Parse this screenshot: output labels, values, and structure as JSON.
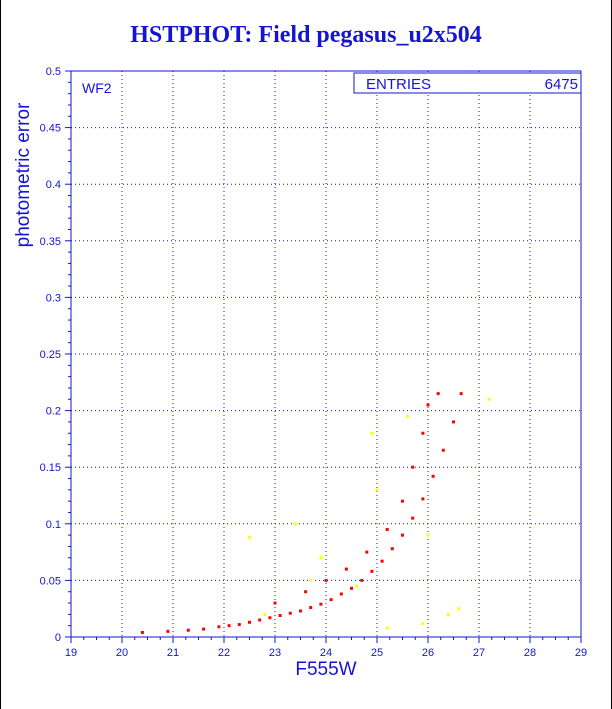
{
  "chart_data": {
    "type": "scatter",
    "title": "HSTPHOT: Field pegasus_u2x504",
    "xlabel": "F555W",
    "ylabel": "photometric error",
    "xlim": [
      19,
      29
    ],
    "ylim": [
      0,
      0.5
    ],
    "x_ticks": [
      "19",
      "20",
      "21",
      "22",
      "23",
      "24",
      "25",
      "26",
      "27",
      "28",
      "29"
    ],
    "y_ticks": [
      "0",
      "0.05",
      "0.1",
      "0.15",
      "0.2",
      "0.25",
      "0.3",
      "0.35",
      "0.4",
      "0.45",
      "0.5"
    ],
    "grid": true,
    "chip_label": "WF2",
    "stats_box": {
      "label": "ENTRIES",
      "value": "6475"
    },
    "colors": {
      "axis": "#1414d2",
      "main_points": "#ff0000",
      "outlier_points": "#ffff00"
    },
    "series": [
      {
        "color": "#ff0000",
        "points": [
          [
            20.4,
            0.004
          ],
          [
            20.9,
            0.005
          ],
          [
            21.3,
            0.006
          ],
          [
            21.6,
            0.007
          ],
          [
            21.9,
            0.009
          ],
          [
            22.1,
            0.01
          ],
          [
            22.3,
            0.011
          ],
          [
            22.5,
            0.013
          ],
          [
            22.7,
            0.015
          ],
          [
            22.9,
            0.017
          ],
          [
            23.1,
            0.019
          ],
          [
            23.3,
            0.021
          ],
          [
            23.5,
            0.023
          ],
          [
            23.7,
            0.026
          ],
          [
            23.9,
            0.029
          ],
          [
            24.1,
            0.033
          ],
          [
            24.3,
            0.038
          ],
          [
            24.5,
            0.043
          ],
          [
            24.7,
            0.05
          ],
          [
            24.9,
            0.058
          ],
          [
            25.1,
            0.067
          ],
          [
            25.3,
            0.078
          ],
          [
            25.5,
            0.09
          ],
          [
            25.7,
            0.105
          ],
          [
            25.9,
            0.122
          ],
          [
            26.1,
            0.142
          ],
          [
            26.3,
            0.165
          ],
          [
            26.5,
            0.19
          ],
          [
            26.65,
            0.215
          ],
          [
            23.0,
            0.03
          ],
          [
            23.6,
            0.04
          ],
          [
            24.0,
            0.05
          ],
          [
            24.4,
            0.06
          ],
          [
            24.8,
            0.075
          ],
          [
            25.2,
            0.095
          ],
          [
            25.5,
            0.12
          ],
          [
            25.7,
            0.15
          ],
          [
            25.9,
            0.18
          ],
          [
            26.0,
            0.205
          ],
          [
            26.2,
            0.215
          ]
        ]
      },
      {
        "color": "#ffff00",
        "points": [
          [
            22.5,
            0.088
          ],
          [
            23.4,
            0.1
          ],
          [
            23.9,
            0.07
          ],
          [
            24.6,
            0.045
          ],
          [
            25.2,
            0.008
          ],
          [
            25.9,
            0.012
          ],
          [
            26.4,
            0.02
          ],
          [
            26.6,
            0.025
          ],
          [
            27.2,
            0.21
          ],
          [
            25.6,
            0.195
          ],
          [
            24.9,
            0.18
          ],
          [
            23.7,
            0.05
          ],
          [
            22.8,
            0.02
          ],
          [
            26.0,
            0.09
          ],
          [
            25.0,
            0.13
          ]
        ]
      }
    ]
  }
}
